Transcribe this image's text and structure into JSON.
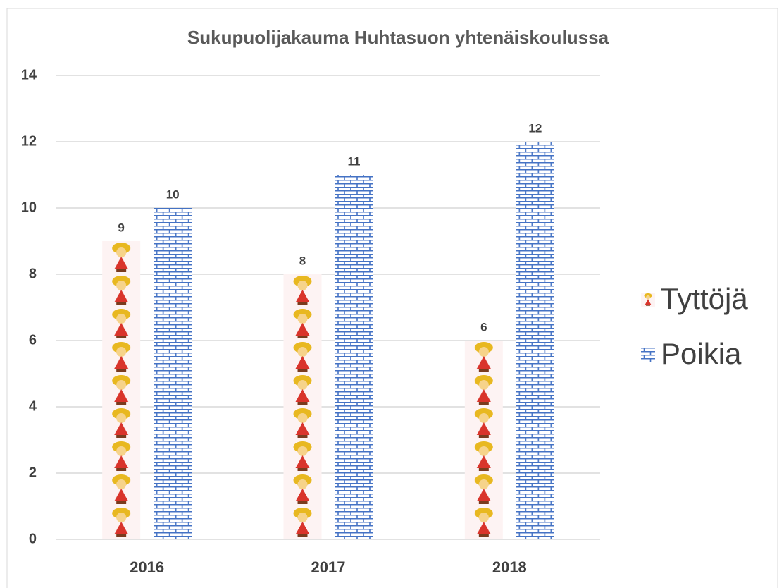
{
  "chart_data": {
    "type": "bar",
    "title": "Sukupuolijakauma Huhtasuon yhtenäiskoulussa",
    "categories": [
      "2016",
      "2017",
      "2018"
    ],
    "series": [
      {
        "name": "Tyttöjä",
        "color": "#e8b820",
        "values": [
          9,
          8,
          6
        ]
      },
      {
        "name": "Poikia",
        "color": "#4472c4",
        "values": [
          10,
          11,
          12
        ]
      }
    ],
    "ylim": [
      0,
      14
    ],
    "yticks": [
      0,
      2,
      4,
      6,
      8,
      10,
      12,
      14
    ],
    "grid": true,
    "legend": "right"
  }
}
